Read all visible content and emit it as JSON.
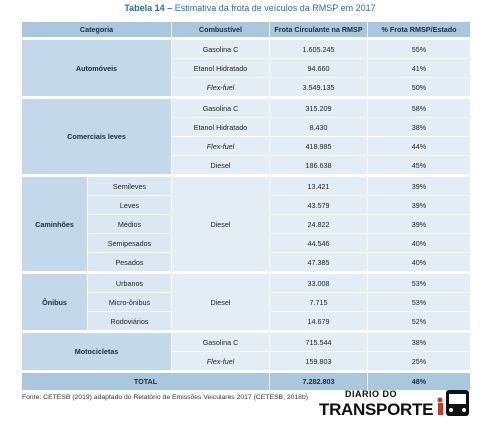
{
  "title": {
    "label": "Tabela 14 –",
    "text": "Estimativa da frota de veículos da RMSP em 2017"
  },
  "table": {
    "header": [
      "Categoria",
      "Combustível",
      "Frota Circulante na RMSP",
      "% Frota RMSP/Estado"
    ],
    "groups": [
      {
        "category": "Automóveis",
        "rows": [
          {
            "fuel": "Gasolina C",
            "frota": "1.605.245",
            "pct": "55%"
          },
          {
            "fuel": "Etanol Hidratado",
            "frota": "94.660",
            "pct": "41%"
          },
          {
            "fuel": "Flex-fuel",
            "fuel_italic": true,
            "frota": "3.549.135",
            "pct": "50%"
          }
        ]
      },
      {
        "category": "Comerciais leves",
        "rows": [
          {
            "fuel": "Gasolina C",
            "frota": "315.209",
            "pct": "58%"
          },
          {
            "fuel": "Etanol Hidratado",
            "frota": "8.430",
            "pct": "38%"
          },
          {
            "fuel": "Flex-fuel",
            "fuel_italic": true,
            "frota": "418.985",
            "pct": "44%"
          },
          {
            "fuel": "Diesel",
            "frota": "186.638",
            "pct": "45%"
          }
        ]
      },
      {
        "category": "Caminhões",
        "fuel": "Diesel",
        "rows": [
          {
            "subcategory": "Semileves",
            "frota": "13.421",
            "pct": "39%"
          },
          {
            "subcategory": "Leves",
            "frota": "43.579",
            "pct": "39%"
          },
          {
            "subcategory": "Médios",
            "frota": "24.822",
            "pct": "39%"
          },
          {
            "subcategory": "Semipesados",
            "frota": "44.546",
            "pct": "40%"
          },
          {
            "subcategory": "Pesados",
            "frota": "47.385",
            "pct": "40%"
          }
        ]
      },
      {
        "category": "Ônibus",
        "fuel": "Diesel",
        "rows": [
          {
            "subcategory": "Urbanos",
            "frota": "33.008",
            "pct": "53%"
          },
          {
            "subcategory": "Micro-ônibus",
            "frota": "7.715",
            "pct": "53%"
          },
          {
            "subcategory": "Rodoviários",
            "frota": "14.679",
            "pct": "52%"
          }
        ]
      },
      {
        "category": "Motocicletas",
        "rows": [
          {
            "fuel": "Gasolina C",
            "frota": "715.544",
            "pct": "38%"
          },
          {
            "fuel": "Flex-fuel",
            "fuel_italic": true,
            "frota": "159.803",
            "pct": "25%"
          }
        ]
      }
    ],
    "total": {
      "label": "TOTAL",
      "frota": "7.282.803",
      "pct": "48%"
    }
  },
  "source": "Fonte: CETESB (2019) adaptado do Relatório de Emissões Veiculares 2017 (CETESB, 2018b)",
  "logo": {
    "line1": "DIÁRIO DO",
    "line2": "TRANSPORTE"
  }
}
